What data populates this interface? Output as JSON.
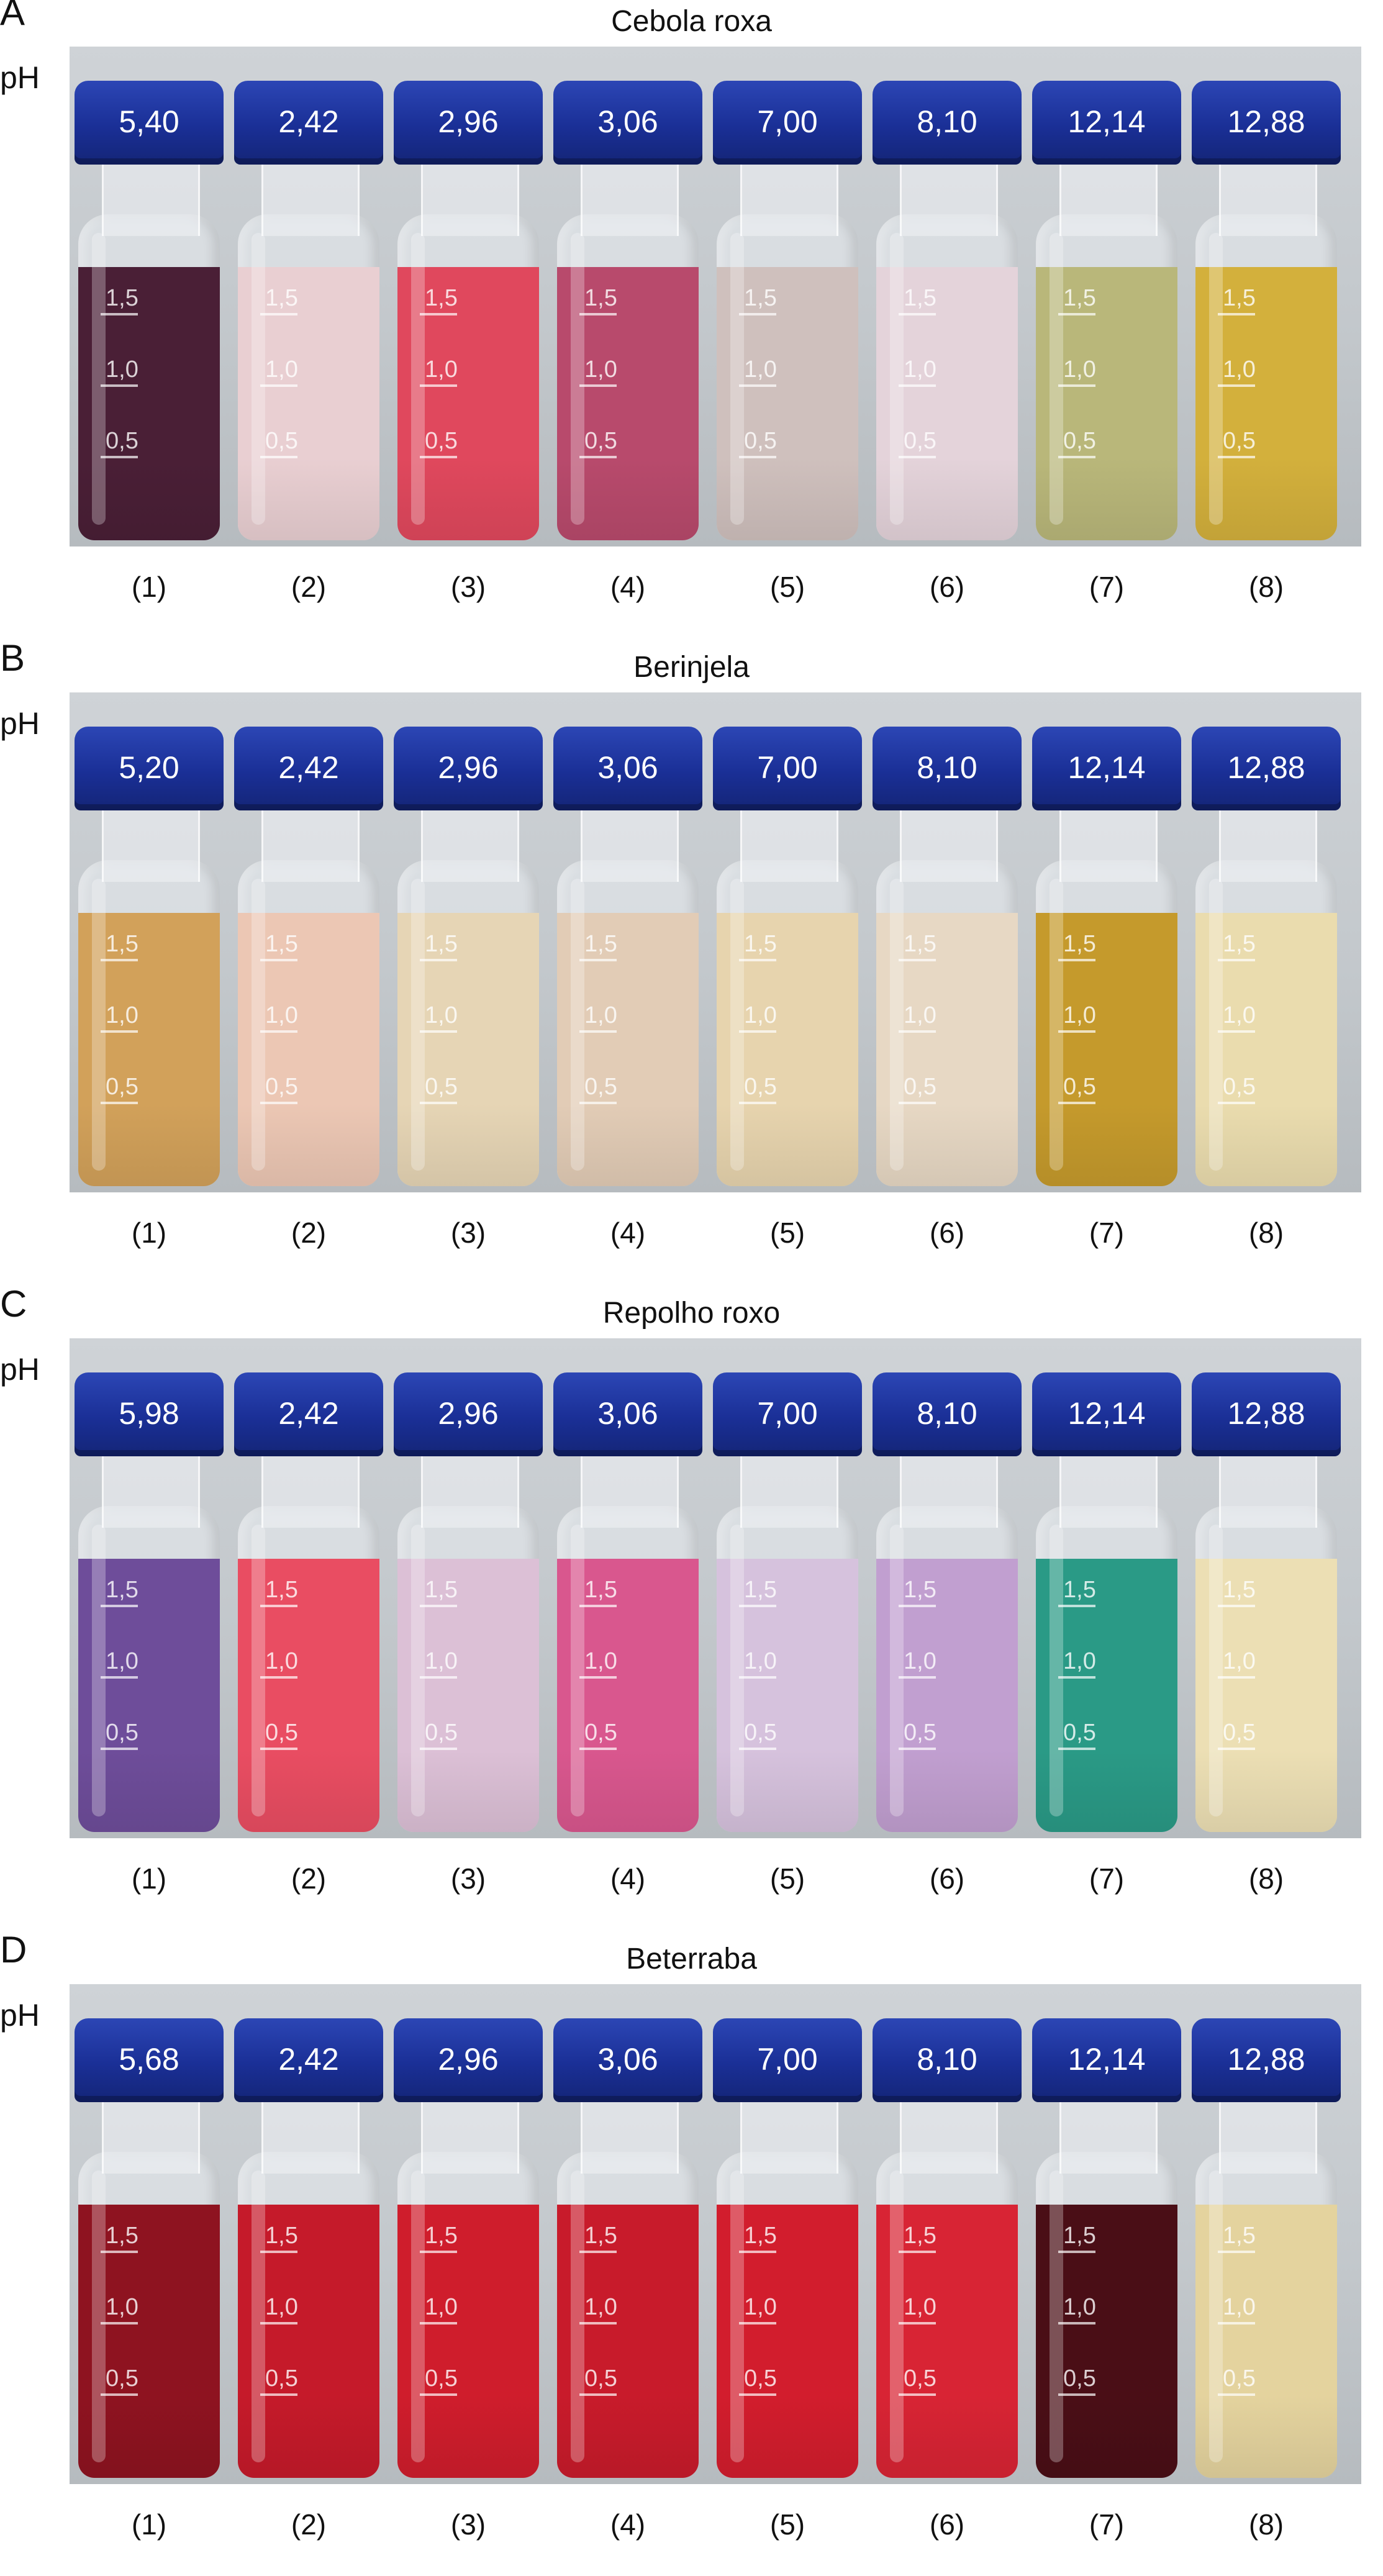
{
  "common": {
    "ph_label": "pH",
    "grad_marks": [
      "1,5",
      "1,0",
      "0,5"
    ],
    "vial_numbers": [
      "(1)",
      "(2)",
      "(3)",
      "(4)",
      "(5)",
      "(6)",
      "(7)",
      "(8)"
    ]
  },
  "panels": [
    {
      "letter": "A",
      "title": "Cebola roxa",
      "vials": [
        {
          "ph": "5,40",
          "color": "#4a1f36"
        },
        {
          "ph": "2,42",
          "color": "#e9cfd2"
        },
        {
          "ph": "2,96",
          "color": "#e0485d"
        },
        {
          "ph": "3,06",
          "color": "#b84a6c"
        },
        {
          "ph": "7,00",
          "color": "#cfc0bd"
        },
        {
          "ph": "8,10",
          "color": "#e4d3da"
        },
        {
          "ph": "12,14",
          "color": "#b9b77a"
        },
        {
          "ph": "12,88",
          "color": "#d3b03c"
        }
      ]
    },
    {
      "letter": "B",
      "title": "Berinjela",
      "vials": [
        {
          "ph": "5,20",
          "color": "#d2a15a"
        },
        {
          "ph": "2,42",
          "color": "#ecc7b4"
        },
        {
          "ph": "2,96",
          "color": "#e6d5b5"
        },
        {
          "ph": "3,06",
          "color": "#e2ccb6"
        },
        {
          "ph": "7,00",
          "color": "#e7d4ae"
        },
        {
          "ph": "8,10",
          "color": "#e7d8c4"
        },
        {
          "ph": "12,14",
          "color": "#c59a2c"
        },
        {
          "ph": "12,88",
          "color": "#eadcae"
        }
      ]
    },
    {
      "letter": "C",
      "title": "Repolho roxo",
      "vials": [
        {
          "ph": "5,98",
          "color": "#6e4d9a"
        },
        {
          "ph": "2,42",
          "color": "#e94d62"
        },
        {
          "ph": "2,96",
          "color": "#dcc0d6"
        },
        {
          "ph": "3,06",
          "color": "#d9578e"
        },
        {
          "ph": "7,00",
          "color": "#d6c2dd"
        },
        {
          "ph": "8,10",
          "color": "#c19fd0"
        },
        {
          "ph": "12,14",
          "color": "#2a9a86"
        },
        {
          "ph": "12,88",
          "color": "#ecdfb4"
        }
      ]
    },
    {
      "letter": "D",
      "title": "Beterraba",
      "vials": [
        {
          "ph": "5,68",
          "color": "#8e1320"
        },
        {
          "ph": "2,42",
          "color": "#c51a2a"
        },
        {
          "ph": "2,96",
          "color": "#cf1d2c"
        },
        {
          "ph": "3,06",
          "color": "#c81b2b"
        },
        {
          "ph": "7,00",
          "color": "#d21d2d"
        },
        {
          "ph": "8,10",
          "color": "#d82434"
        },
        {
          "ph": "12,14",
          "color": "#4a0e16"
        },
        {
          "ph": "12,88",
          "color": "#e4d39e"
        }
      ]
    }
  ]
}
